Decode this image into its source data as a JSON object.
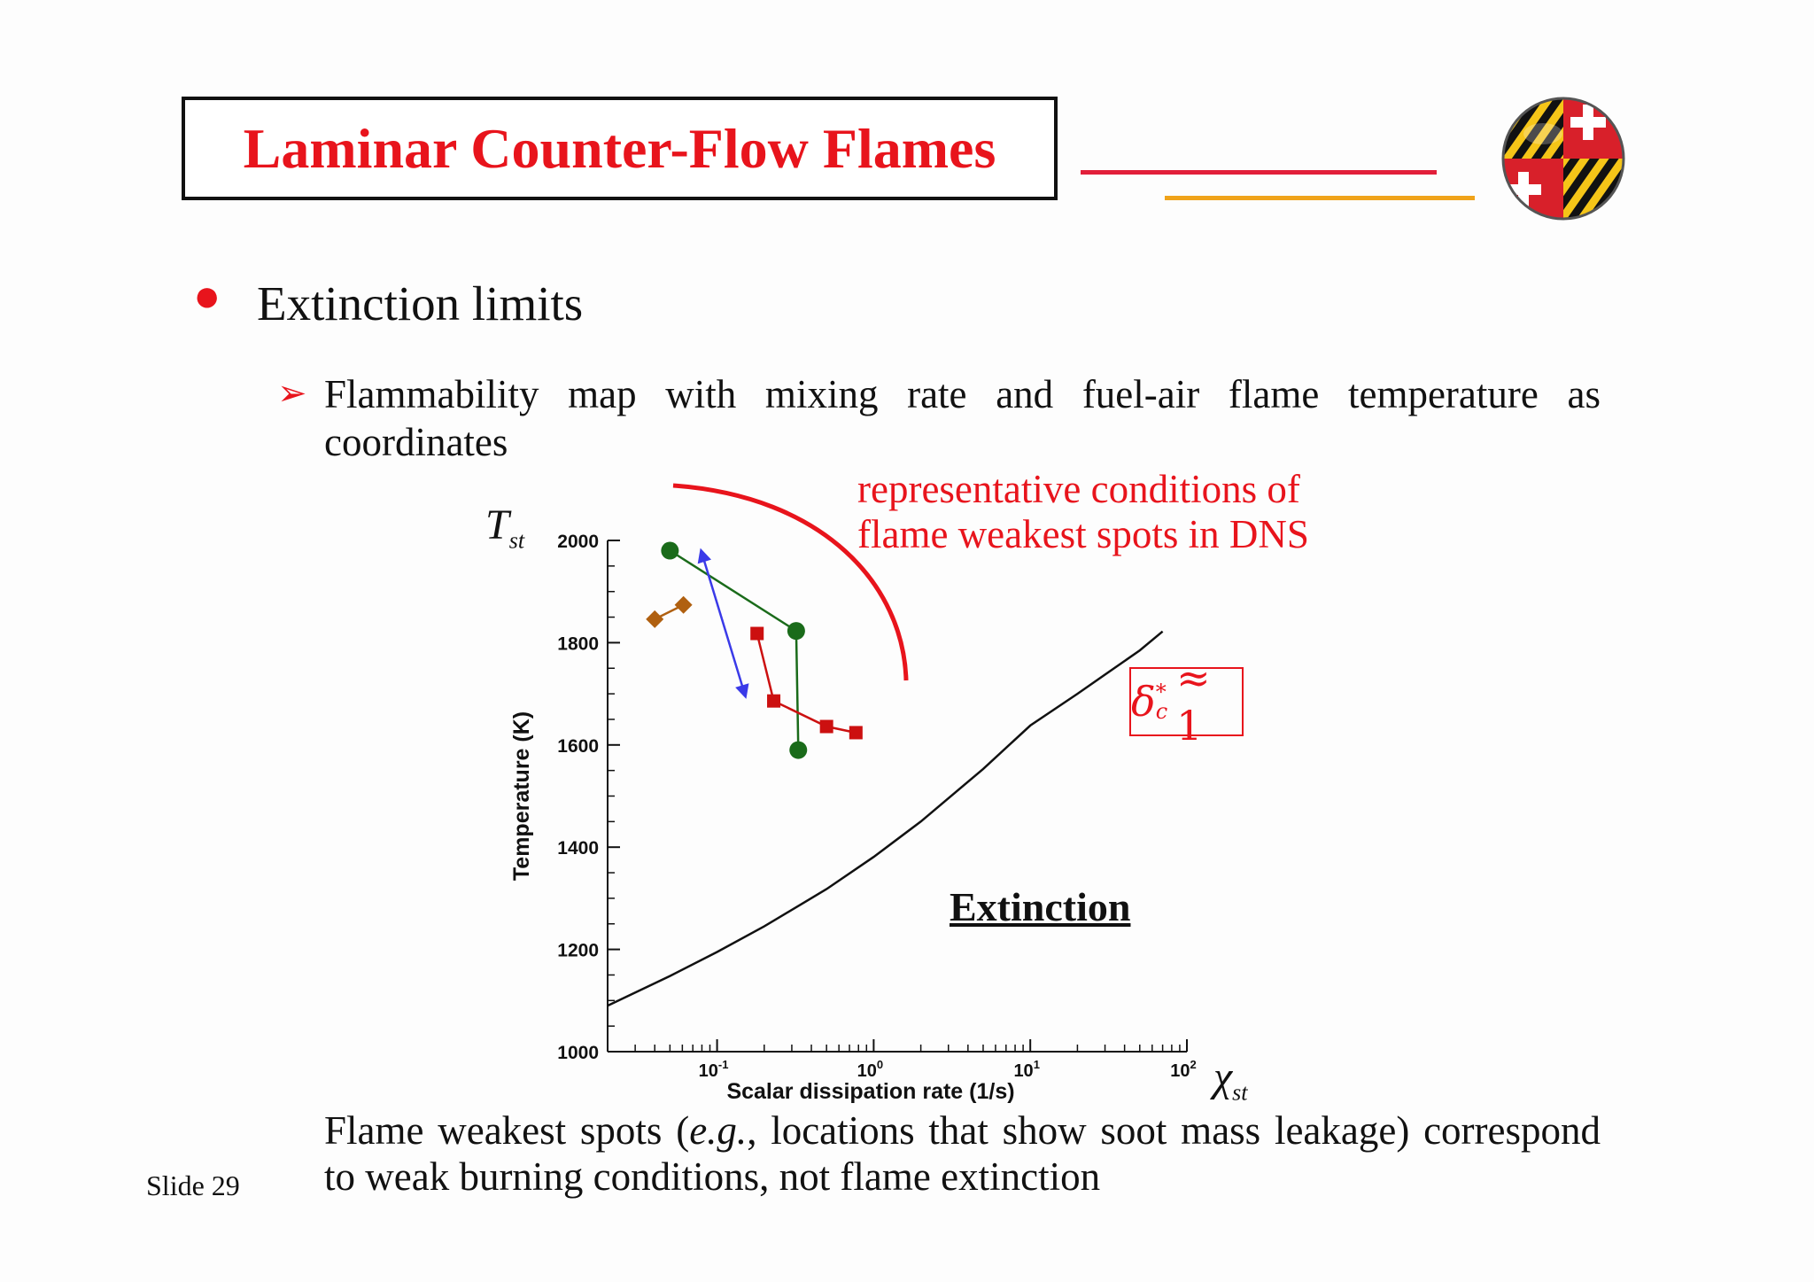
{
  "slide": {
    "title": "Laminar Counter-Flow Flames",
    "bullet": "Extinction limits",
    "sub_bullet": "Flammability map with mixing rate  and fuel-air flame temperature as coordinates",
    "caption_part1": "Flame weakest spots (",
    "caption_italic": "e.g.",
    "caption_part2": ", locations that show soot mass leakage) correspond to weak burning conditions, not flame extinction",
    "slide_number": "Slide 29",
    "red_annotation_line1": "representative conditions of",
    "red_annotation_line2": "flame weakest spots in DNS",
    "extinction_label": "Extinction",
    "delta_symbol": "δ",
    "delta_sup": "*",
    "delta_sub": "c",
    "delta_rest": "≈ 1",
    "tst_symbol": "T",
    "tst_sub": "st",
    "chi_symbol": "χ",
    "chi_sub": "st"
  },
  "colors": {
    "title_red": "#e8141c",
    "deco_red": "#e21f3a",
    "deco_gold": "#f0a31a",
    "green": "#1a6b1a",
    "blue": "#3a3ae8",
    "red_series": "#cc1010",
    "brown": "#b06010"
  },
  "logo": {
    "icon": "maryland-flag-globe-icon"
  },
  "chart_data": {
    "type": "scatter",
    "xlabel": "Scalar dissipation rate (1/s)",
    "ylabel": "Temperature (K)",
    "xscale": "log",
    "xlim": [
      0.02,
      100
    ],
    "ylim": [
      1000,
      2000
    ],
    "yticks": [
      {
        "value": 1000,
        "label": "1000"
      },
      {
        "value": 1200,
        "label": "1200"
      },
      {
        "value": 1400,
        "label": "1400"
      },
      {
        "value": 1600,
        "label": "1600"
      },
      {
        "value": 1800,
        "label": "1800"
      },
      {
        "value": 2000,
        "label": "2000"
      }
    ],
    "xticks": [
      {
        "value": 0.1,
        "label_base": "10",
        "label_exp": "-1"
      },
      {
        "value": 1,
        "label_base": "10",
        "label_exp": "0"
      },
      {
        "value": 10,
        "label_base": "10",
        "label_exp": "1"
      },
      {
        "value": 100,
        "label_base": "10",
        "label_exp": "2"
      }
    ],
    "extinction_curve": {
      "x": [
        0.02,
        0.05,
        0.1,
        0.2,
        0.5,
        1,
        2,
        5,
        10,
        20,
        50,
        70
      ],
      "y": [
        1090,
        1148,
        1195,
        1245,
        1318,
        1381,
        1450,
        1553,
        1638,
        1700,
        1785,
        1822
      ]
    },
    "series": [
      {
        "marker": "circle",
        "color": "#1a6b1a",
        "x": [
          0.05,
          0.32,
          0.33
        ],
        "y": [
          1980,
          1823,
          1590
        ]
      },
      {
        "marker": "triangle",
        "color": "#3a3ae8",
        "x": [
          0.08,
          0.15
        ],
        "y": [
          1975,
          1700
        ]
      },
      {
        "marker": "square",
        "color": "#cc1010",
        "x": [
          0.18,
          0.23,
          0.5,
          0.77
        ],
        "y": [
          1818,
          1686,
          1636,
          1624
        ]
      },
      {
        "marker": "diamond",
        "color": "#b06010",
        "x": [
          0.04,
          0.061
        ],
        "y": [
          1846,
          1874
        ]
      }
    ]
  }
}
